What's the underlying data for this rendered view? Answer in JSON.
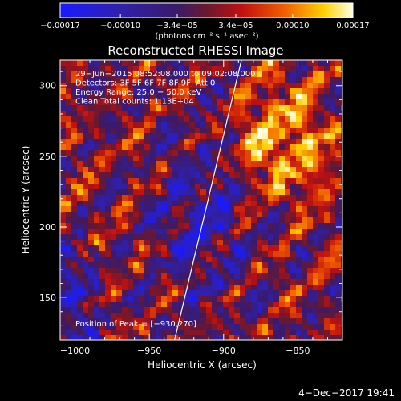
{
  "chart_data": {
    "type": "heatmap",
    "title": "Reconstructed RHESSI Image",
    "xlabel": "Heliocentric X (arcsec)",
    "ylabel": "Heliocentric Y (arcsec)",
    "xlim": [
      -1010,
      -820
    ],
    "ylim": [
      120,
      318
    ],
    "x_ticks": [
      -1000,
      -950,
      -900,
      -850
    ],
    "x_tick_labels": [
      "−1000",
      "−950",
      "−900",
      "−850"
    ],
    "y_ticks": [
      150,
      200,
      250,
      300
    ],
    "y_tick_labels": [
      "150",
      "200",
      "250",
      "300"
    ],
    "colorbar": {
      "range": [
        -0.00017,
        0.00017
      ],
      "ticks": [
        -0.00017,
        -0.0001,
        -3.4e-05,
        3.4e-05,
        0.0001,
        0.00017
      ],
      "tick_labels": [
        "−0.00017",
        "−0.00010",
        "−3.4e−05",
        "3.4e−05",
        "0.00010",
        "0.00017"
      ],
      "unit_label": "(photons cm⁻² s⁻¹ asec⁻²)"
    },
    "annotations": [
      "29−Jun−2015 08:52:08.000 to 09:02:08.000",
      "Detectors: 3F 5F 6F 7F 8F 9F, Att 0",
      "Energy Range: 25.0 − 50.0 keV",
      "Clean     Total counts: 1.13E+04"
    ],
    "peak_label": "Position of Peak = [−930,270]",
    "limb_line": {
      "x": [
        -933,
        -888
      ],
      "y": [
        120,
        318
      ]
    },
    "grid": false
  },
  "footer": {
    "timestamp": "4−Dec−2017 19:41"
  }
}
